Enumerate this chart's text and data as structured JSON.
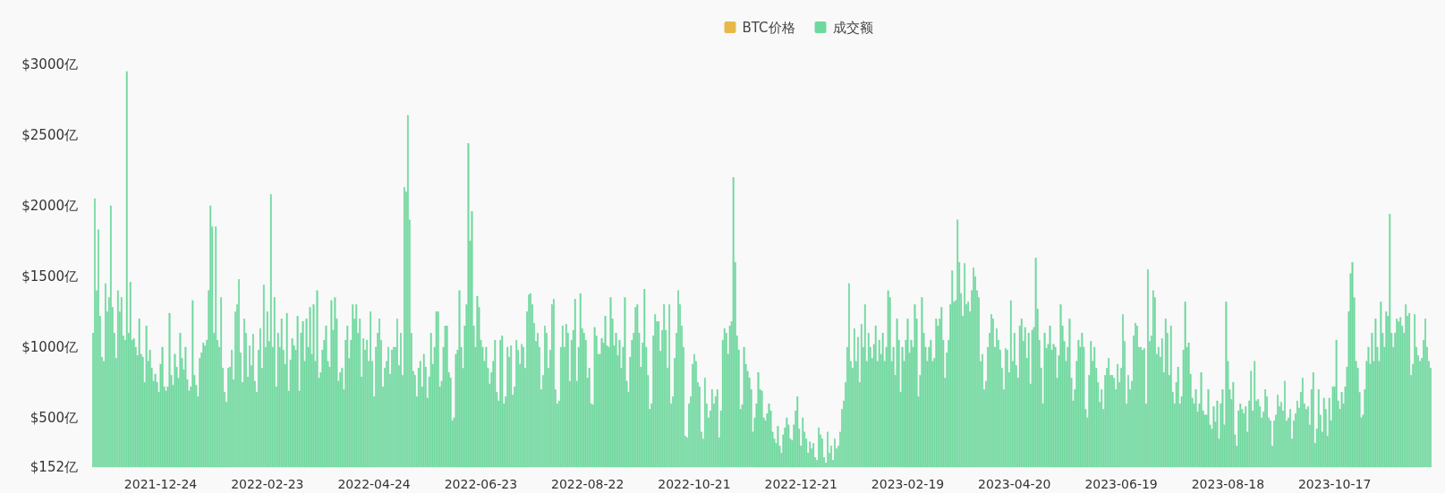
{
  "chart_data": {
    "type": "bar",
    "legend": "top",
    "ylim": [
      152,
      3000
    ],
    "yticks": [
      {
        "value": 152,
        "label": "$152亿"
      },
      {
        "value": 500,
        "label": "$500亿"
      },
      {
        "value": 1000,
        "label": "$1000亿"
      },
      {
        "value": 1500,
        "label": "$1500亿"
      },
      {
        "value": 2000,
        "label": "$2000亿"
      },
      {
        "value": 2500,
        "label": "$2500亿"
      },
      {
        "value": 3000,
        "label": "$3000亿"
      }
    ],
    "categories": [
      null,
      null,
      null,
      null,
      null,
      null,
      null,
      null,
      null,
      null,
      null,
      null,
      null,
      null,
      null,
      null,
      null,
      null,
      null,
      null,
      null,
      null,
      null,
      null,
      null,
      null,
      null,
      null,
      null,
      null,
      null,
      null,
      null,
      null,
      null,
      null,
      null,
      null,
      "2021-12-24",
      null,
      null,
      null,
      null,
      null,
      null,
      null,
      null,
      null,
      null,
      null,
      null,
      null,
      null,
      null,
      null,
      null,
      null,
      null,
      null,
      null,
      null,
      null,
      null,
      null,
      null,
      null,
      null,
      null,
      null,
      null,
      null,
      null,
      null,
      null,
      null,
      null,
      null,
      null,
      null,
      null,
      null,
      null,
      null,
      null,
      null,
      null,
      null,
      null,
      null,
      null,
      null,
      null,
      null,
      null,
      null,
      null,
      null,
      null,
      "2022-02-23",
      null,
      null,
      null,
      null,
      null,
      null,
      null,
      null,
      null,
      null,
      null,
      null,
      null,
      null,
      null,
      null,
      null,
      null,
      null,
      null,
      null,
      null,
      null,
      null,
      null,
      null,
      null,
      null,
      null,
      null,
      null,
      null,
      null,
      null,
      null,
      null,
      null,
      null,
      null,
      null,
      null,
      null,
      null,
      null,
      null,
      null,
      null,
      null,
      null,
      null,
      null,
      null,
      null,
      null,
      null,
      null,
      null,
      null,
      null,
      "2022-04-24",
      null,
      null,
      null,
      null,
      null,
      null,
      null,
      null,
      null,
      null,
      null,
      null,
      null,
      null,
      null,
      null,
      null,
      null,
      null,
      null,
      null,
      null,
      null,
      null,
      null,
      null,
      null,
      null,
      null,
      null,
      null,
      null,
      null,
      null,
      null,
      null,
      null,
      null,
      null,
      null,
      null,
      null,
      null,
      null,
      null,
      null,
      null,
      null,
      null,
      null,
      null,
      null,
      null,
      null,
      null,
      null,
      null,
      null,
      null,
      "2022-06-23",
      null,
      null,
      null,
      null,
      null,
      null,
      null,
      null,
      null,
      null,
      null,
      null,
      null,
      null,
      null,
      null,
      null,
      null,
      null,
      null,
      null,
      null,
      null,
      null,
      null,
      null,
      null,
      null,
      null,
      null,
      null,
      null,
      null,
      null,
      null,
      null,
      null,
      null,
      null,
      null,
      null,
      null,
      null,
      null,
      null,
      null,
      null,
      null,
      null,
      null,
      null,
      null,
      null,
      null,
      null,
      null,
      null,
      null,
      null,
      "2022-08-22",
      null,
      null,
      null,
      null,
      null,
      null,
      null,
      null,
      null,
      null,
      null,
      null,
      null,
      null,
      null,
      null,
      null,
      null,
      null,
      null,
      null,
      null,
      null,
      null,
      null,
      null,
      null,
      null,
      null,
      null,
      null,
      null,
      null,
      null,
      null,
      null,
      null,
      null,
      null,
      null,
      null,
      null,
      null,
      null,
      null,
      null,
      null,
      null,
      null,
      null,
      null,
      null,
      null,
      null,
      null,
      null,
      null,
      null,
      null,
      "2022-10-21",
      null,
      null,
      null,
      null,
      null,
      null,
      null,
      null,
      null,
      null,
      null,
      null,
      null,
      null,
      null,
      null,
      null,
      null,
      null,
      null,
      null,
      null,
      null,
      null,
      null,
      null,
      null,
      null,
      null,
      null,
      null,
      null,
      null,
      null,
      null,
      null,
      null,
      null,
      null,
      null,
      null,
      null,
      null,
      null,
      null,
      null,
      null,
      null,
      null,
      null,
      null,
      null,
      null,
      null,
      null,
      null,
      null,
      null,
      null,
      "2022-12-21",
      null,
      null,
      null,
      null,
      null,
      null,
      null,
      null,
      null,
      null,
      null,
      null,
      null,
      null,
      null,
      null,
      null,
      null,
      null,
      null,
      null,
      null,
      null,
      null,
      null,
      null,
      null,
      null,
      null,
      null,
      null,
      null,
      null,
      null,
      null,
      null,
      null,
      null,
      null,
      null,
      null,
      null,
      null,
      null,
      null,
      null,
      null,
      null,
      null,
      null,
      null,
      null,
      null,
      null,
      null,
      null,
      null,
      null,
      null,
      "2023-02-19",
      null,
      null,
      null,
      null,
      null,
      null,
      null,
      null,
      null,
      null,
      null,
      null,
      null,
      null,
      null,
      null,
      null,
      null,
      null,
      null,
      null,
      null,
      null,
      null,
      null,
      null,
      null,
      null,
      null,
      null,
      null,
      null,
      null,
      null,
      null,
      null,
      null,
      null,
      null,
      null,
      null,
      null,
      null,
      null,
      null,
      null,
      null,
      null,
      null,
      null,
      null,
      null,
      null,
      null,
      null,
      null,
      null,
      null,
      null,
      "2023-04-20",
      null,
      null,
      null,
      null,
      null,
      null,
      null,
      null,
      null,
      null,
      null,
      null,
      null,
      null,
      null,
      null,
      null,
      null,
      null,
      null,
      null,
      null,
      null,
      null,
      null,
      null,
      null,
      null,
      null,
      null,
      null,
      null,
      null,
      null,
      null,
      null,
      null,
      null,
      null,
      null,
      null,
      null,
      null,
      null,
      null,
      null,
      null,
      null,
      null,
      null,
      null,
      null,
      null,
      null,
      null,
      null,
      null,
      null,
      null,
      "2023-06-19",
      null,
      null,
      null,
      null,
      null,
      null,
      null,
      null,
      null,
      null,
      null,
      null,
      null,
      null,
      null,
      null,
      null,
      null,
      null,
      null,
      null,
      null,
      null,
      null,
      null,
      null,
      null,
      null,
      null,
      null,
      null,
      null,
      null,
      null,
      null,
      null,
      null,
      null,
      null,
      null,
      null,
      null,
      null,
      null,
      null,
      null,
      null,
      null,
      null,
      null,
      null,
      null,
      null,
      null,
      null,
      null,
      null,
      null,
      null,
      "2023-08-18",
      null,
      null,
      null,
      null,
      null,
      null,
      null,
      null,
      null,
      null,
      null,
      null,
      null,
      null,
      null,
      null,
      null,
      null,
      null,
      null,
      null,
      null,
      null,
      null,
      null,
      null,
      null,
      null,
      null,
      null,
      null,
      null,
      null,
      null,
      null,
      null,
      null,
      null,
      null,
      null,
      null,
      null,
      null,
      null,
      null,
      null,
      null,
      null,
      null,
      null,
      null,
      null,
      null,
      null,
      null,
      null,
      null,
      null,
      null,
      "2023-10-17",
      null,
      null,
      null,
      null,
      null,
      null,
      null,
      null,
      null,
      null,
      null,
      null,
      null,
      null,
      null,
      null,
      null,
      null,
      null,
      null,
      null,
      null,
      null,
      null,
      null,
      null,
      null,
      null,
      null,
      null,
      null,
      null,
      null,
      null,
      null,
      null,
      null,
      null,
      null,
      null,
      null,
      null,
      null,
      null,
      null,
      null,
      null,
      null,
      null,
      null,
      null,
      null,
      null,
      null
    ],
    "series": [
      {
        "name": "BTC价格",
        "color": "#e8b949",
        "values": [
          null,
          null,
          null,
          null,
          null,
          null,
          null,
          null,
          null,
          null,
          null,
          null,
          null,
          null,
          null,
          null,
          null,
          null,
          null,
          null,
          null,
          null,
          null,
          null,
          null,
          null,
          null,
          null,
          null,
          null,
          null,
          null,
          null,
          null,
          null,
          null,
          null,
          null,
          null,
          null,
          null,
          null,
          null,
          null,
          null,
          null,
          null,
          null,
          null,
          null,
          null,
          null,
          null,
          null,
          null,
          null,
          null,
          null,
          null,
          null,
          null,
          null,
          null,
          null,
          null,
          null,
          null,
          null,
          null,
          null,
          null,
          null,
          null,
          null,
          null,
          null,
          null,
          null,
          null,
          null,
          null,
          null,
          null,
          null,
          null,
          null,
          null,
          null,
          null,
          null,
          null,
          null,
          null,
          null,
          null,
          null,
          null,
          null,
          null,
          null,
          null,
          null,
          null,
          null,
          null,
          null,
          null,
          null,
          null,
          null,
          null,
          null,
          null,
          null,
          null,
          null,
          null,
          null,
          null,
          null,
          null,
          null,
          null,
          null,
          null,
          null,
          null,
          null,
          null,
          null,
          null,
          null,
          null,
          null,
          null,
          null,
          null,
          null,
          null,
          null,
          null,
          null,
          null,
          null,
          null,
          null,
          null,
          null,
          null,
          null,
          null,
          null,
          null,
          null,
          null,
          null,
          null,
          null,
          null,
          null,
          null,
          null,
          null,
          null,
          null,
          null,
          null,
          null,
          null,
          null,
          null,
          null,
          null,
          null,
          null,
          null,
          null,
          null,
          null,
          null,
          null,
          null,
          null,
          null,
          null,
          null,
          null,
          null,
          null,
          null,
          null,
          null,
          null,
          null,
          null,
          null,
          null,
          null,
          null,
          null,
          null,
          null,
          null,
          null,
          null,
          null,
          null,
          null,
          null,
          null,
          null,
          null,
          null,
          null,
          null,
          null,
          null,
          null,
          null,
          null,
          null,
          null,
          null,
          null,
          null,
          null,
          null,
          null,
          null,
          null,
          null,
          null,
          null,
          null,
          null,
          null,
          null,
          null,
          null,
          null,
          null,
          null,
          null,
          null,
          null,
          null,
          null,
          null,
          null,
          null,
          null,
          null,
          null,
          null,
          null,
          null,
          null,
          null,
          null,
          null,
          null,
          null,
          null,
          null,
          null,
          null,
          null,
          null,
          null,
          null,
          null,
          null,
          null,
          null,
          null,
          null,
          null,
          null,
          null,
          null,
          null,
          null,
          null,
          null,
          null,
          null,
          null,
          null,
          null,
          null,
          null,
          null,
          null,
          null,
          null,
          null,
          null,
          null,
          null,
          null,
          null,
          null,
          null,
          null,
          null,
          null,
          null,
          null,
          null,
          null,
          null,
          null,
          null,
          null,
          null,
          null,
          null,
          null,
          null,
          null,
          null,
          null,
          null,
          null,
          null,
          null,
          null,
          null,
          null,
          null,
          null,
          null,
          null,
          null,
          null,
          null,
          null,
          null,
          null,
          null,
          null,
          null,
          null,
          null,
          null,
          null,
          null,
          null,
          null,
          null,
          null,
          null,
          null,
          null,
          null,
          null,
          null,
          null,
          null,
          null,
          null,
          null,
          null,
          null,
          null,
          null,
          null,
          null,
          null,
          null,
          null,
          null,
          null,
          null,
          null,
          null,
          null,
          null,
          null,
          null,
          null,
          null,
          null,
          null,
          null,
          null,
          null,
          null,
          null,
          null,
          null,
          null,
          null,
          null,
          null,
          null,
          null,
          null,
          null,
          null,
          null,
          null,
          null,
          null,
          null,
          null,
          null,
          null,
          null,
          null,
          null,
          null,
          null,
          null,
          null,
          null,
          null,
          null,
          null,
          null,
          null,
          null,
          null,
          null,
          null,
          null,
          null,
          null,
          null,
          null,
          null,
          null,
          null,
          null,
          null,
          null,
          null,
          null,
          null,
          null,
          null,
          null,
          null,
          null,
          null,
          null,
          null,
          null,
          null,
          null,
          null,
          null,
          null,
          null,
          null,
          null,
          null,
          null,
          null,
          null,
          null,
          null,
          null,
          null,
          null,
          null,
          null,
          null,
          null,
          null,
          null,
          null,
          null,
          null,
          null,
          null,
          null,
          null,
          null,
          null,
          null,
          null,
          null,
          null,
          null,
          null,
          null,
          null,
          null,
          null,
          null,
          null,
          null,
          null,
          null,
          null,
          null,
          null,
          null,
          null,
          null,
          null,
          null,
          null,
          null,
          null,
          null,
          null,
          null,
          null,
          null,
          null,
          null,
          null,
          null,
          null,
          null,
          null,
          null,
          null,
          null,
          null,
          null,
          null,
          null,
          null,
          null,
          null,
          null,
          null,
          null,
          null,
          null,
          null,
          null,
          null,
          null,
          null,
          null,
          null,
          null,
          null,
          null,
          null,
          null,
          null,
          null,
          null,
          null,
          null,
          null,
          null,
          null,
          null,
          null,
          null,
          null,
          null,
          null,
          null,
          null,
          null,
          null,
          null,
          null,
          null,
          null,
          null,
          null,
          null,
          null,
          null,
          null,
          null,
          null,
          null,
          null,
          null,
          null,
          null,
          null,
          null,
          null,
          null,
          null,
          null,
          null,
          null,
          null,
          null,
          null,
          null,
          null,
          null,
          null,
          null,
          null,
          null,
          null,
          null,
          null,
          null,
          null,
          null,
          null,
          null,
          null,
          null,
          null,
          null,
          null,
          null,
          null,
          null,
          null,
          null,
          null,
          null,
          null,
          null,
          null,
          null,
          null,
          null,
          null,
          null,
          null,
          null,
          null,
          null,
          null,
          null,
          null,
          null,
          null,
          null,
          null,
          null,
          null,
          null,
          null,
          null,
          null,
          null,
          null,
          null,
          null,
          null,
          null,
          null,
          null,
          null,
          null,
          null,
          null,
          null,
          null,
          null,
          null,
          null,
          null,
          null,
          null,
          null,
          null,
          null,
          null,
          null,
          null,
          null,
          null,
          null,
          null,
          null,
          null,
          null,
          null,
          null,
          null,
          null,
          null,
          null,
          null,
          null,
          null,
          null,
          null,
          null,
          null,
          null,
          null,
          null,
          null,
          null,
          null,
          null,
          null,
          null,
          null,
          null,
          null,
          null,
          null,
          null,
          null,
          null,
          null,
          null,
          null,
          null,
          null,
          null,
          null,
          null,
          null,
          null,
          null,
          null,
          null,
          null,
          null,
          null,
          null,
          null,
          null,
          null,
          null,
          null,
          null,
          null,
          null,
          null,
          null,
          null,
          null,
          null,
          null,
          null,
          null,
          null,
          null,
          null,
          null,
          null,
          null,
          null,
          null,
          null,
          null,
          null,
          null,
          null,
          null
        ]
      },
      {
        "name": "成交额",
        "color": "#6fd89e",
        "values": [
          1100,
          2050,
          1400,
          1830,
          1220,
          930,
          900,
          1450,
          1250,
          1350,
          2000,
          1280,
          1100,
          920,
          1400,
          1250,
          1350,
          1080,
          1050,
          2950,
          1100,
          1460,
          1050,
          1060,
          1000,
          940,
          1200,
          950,
          930,
          750,
          1150,
          900,
          980,
          850,
          760,
          810,
          750,
          680,
          880,
          1000,
          720,
          690,
          720,
          1240,
          800,
          730,
          950,
          860,
          780,
          1100,
          920,
          840,
          1000,
          770,
          690,
          720,
          1330,
          800,
          730,
          650,
          920,
          960,
          1030,
          1010,
          1050,
          1400,
          2000,
          1850,
          1100,
          1850,
          1050,
          1000,
          1350,
          850,
          680,
          610,
          850,
          860,
          980,
          770,
          1250,
          1300,
          1480,
          960,
          750,
          1200,
          1100,
          790,
          1010,
          870,
          1090,
          760,
          680,
          980,
          1130,
          850,
          1440,
          1000,
          1250,
          1040,
          2080,
          1000,
          1350,
          720,
          1100,
          1000,
          1200,
          980,
          880,
          1240,
          690,
          910,
          1060,
          1010,
          980,
          1220,
          690,
          1100,
          1180,
          900,
          1200,
          1000,
          1280,
          950,
          1300,
          900,
          1400,
          780,
          820,
          980,
          1050,
          1150,
          900,
          860,
          1330,
          1120,
          1350,
          1200,
          760,
          820,
          850,
          700,
          1050,
          1150,
          920,
          1050,
          1300,
          1200,
          1300,
          1100,
          1200,
          790,
          1060,
          980,
          1050,
          900,
          1250,
          900,
          650,
          1000,
          1100,
          1200,
          1050,
          720,
          850,
          900,
          1000,
          810,
          980,
          1000,
          1000,
          1200,
          870,
          1100,
          800,
          2130,
          2100,
          2640,
          1900,
          1100,
          830,
          800,
          650,
          850,
          900,
          720,
          950,
          860,
          640,
          790,
          1100,
          880,
          1000,
          1250,
          1250,
          720,
          760,
          1000,
          1150,
          1150,
          820,
          780,
          480,
          500,
          950,
          980,
          1400,
          1000,
          850,
          1150,
          1300,
          2440,
          1750,
          1960,
          1150,
          1000,
          1360,
          1280,
          1050,
          1000,
          900,
          1000,
          850,
          740,
          820,
          900,
          1050,
          680,
          620,
          1050,
          1080,
          600,
          650,
          1000,
          930,
          1010,
          660,
          720,
          1050,
          980,
          880,
          1020,
          1000,
          850,
          1250,
          1370,
          1380,
          1300,
          1170,
          1040,
          1100,
          1000,
          700,
          800,
          1150,
          1100,
          850,
          980,
          1300,
          1340,
          700,
          600,
          620,
          1000,
          1150,
          1000,
          1160,
          1100,
          760,
          1050,
          1120,
          1340,
          760,
          1000,
          1380,
          1130,
          1100,
          1050,
          780,
          850,
          600,
          590,
          1140,
          1080,
          950,
          950,
          1060,
          1030,
          1220,
          1010,
          1000,
          1350,
          1200,
          1010,
          1100,
          940,
          1050,
          850,
          1000,
          1350,
          760,
          680,
          930,
          1050,
          1100,
          1280,
          1300,
          1100,
          860,
          1030,
          1410,
          1000,
          800,
          560,
          600,
          1080,
          1230,
          1180,
          1180,
          970,
          1120,
          1300,
          1120,
          850,
          1300,
          600,
          650,
          920,
          1100,
          1400,
          1300,
          1150,
          1000,
          370,
          360,
          600,
          650,
          880,
          950,
          900,
          750,
          720,
          400,
          350,
          780,
          600,
          500,
          550,
          700,
          600,
          650,
          700,
          360,
          550,
          1050,
          1130,
          1100,
          950,
          1150,
          1180,
          2200,
          1600,
          1080,
          980,
          560,
          590,
          1000,
          880,
          830,
          780,
          700,
          400,
          500,
          600,
          820,
          700,
          690,
          500,
          480,
          530,
          600,
          550,
          400,
          350,
          320,
          440,
          300,
          250,
          380,
          430,
          500,
          450,
          350,
          340,
          450,
          550,
          650,
          420,
          300,
          500,
          400,
          350,
          250,
          330,
          280,
          320,
          220,
          200,
          430,
          380,
          350,
          220,
          180,
          400,
          250,
          300,
          200,
          350,
          280,
          300,
          400,
          560,
          620,
          750,
          1000,
          1450,
          900,
          850,
          1130,
          900,
          1070,
          750,
          1160,
          1000,
          1300,
          900,
          1100,
          1000,
          920,
          1020,
          1150,
          900,
          1050,
          950,
          1100,
          900,
          1000,
          1400,
          1350,
          900,
          1000,
          800,
          1200,
          1050,
          680,
          1000,
          900,
          1050,
          1200,
          960,
          1050,
          1000,
          1300,
          1200,
          650,
          800,
          1350,
          1100,
          1000,
          900,
          1000,
          1050,
          900,
          920,
          1200,
          1150,
          1200,
          1280,
          1050,
          780,
          960,
          1050,
          1300,
          1540,
          1320,
          1330,
          1900,
          1600,
          1380,
          1220,
          1590,
          1300,
          1320,
          1250,
          1400,
          1560,
          1500,
          1400,
          1350,
          900,
          950,
          700,
          760,
          1000,
          1100,
          1230,
          1200,
          1000,
          1130,
          1050,
          980,
          850,
          700,
          990,
          980,
          820,
          1330,
          900,
          1100,
          870,
          780,
          1150,
          1200,
          1040,
          1140,
          920,
          1100,
          740,
          1120,
          1140,
          1630,
          1270,
          1050,
          850,
          600,
          1100,
          990,
          1020,
          1150,
          980,
          1020,
          1000,
          780,
          940,
          1300,
          1150,
          1040,
          900,
          1000,
          1200,
          780,
          620,
          700,
          900,
          1050,
          1000,
          1100,
          1000,
          560,
          500,
          800,
          1040,
          900,
          1000,
          850,
          750,
          610,
          700,
          560,
          800,
          850,
          920,
          800,
          800,
          780,
          700,
          880,
          750,
          850,
          1230,
          1040,
          600,
          800,
          700,
          760,
          1080,
          1170,
          1150,
          1000,
          1000,
          980,
          990,
          600,
          1550,
          1040,
          1080,
          1400,
          1350,
          950,
          1000,
          930,
          1060,
          820,
          1200,
          1100,
          800,
          1150,
          680,
          600,
          750,
          860,
          600,
          650,
          980,
          1320,
          1000,
          1030,
          810,
          640,
          600,
          700,
          540,
          600,
          820,
          550,
          520,
          520,
          700,
          450,
          420,
          580,
          470,
          620,
          350,
          600,
          700,
          450,
          1320,
          900,
          700,
          630,
          750,
          380,
          300,
          550,
          600,
          560,
          530,
          580,
          400,
          620,
          830,
          550,
          900,
          620,
          630,
          580,
          500,
          540,
          700,
          650,
          500,
          480,
          300,
          480,
          520,
          660,
          580,
          610,
          550,
          760,
          480,
          500,
          560,
          350,
          480,
          530,
          620,
          570,
          680,
          780,
          600,
          560,
          580,
          450,
          700,
          820,
          320,
          420,
          700,
          520,
          400,
          640,
          560,
          370,
          640,
          480,
          720,
          720,
          1050,
          620,
          560,
          680,
          600,
          720,
          860,
          1250,
          1520,
          1600,
          1350,
          900,
          850,
          680,
          500,
          520,
          700,
          900,
          1000,
          880,
          1100,
          900,
          1200,
          1000,
          900,
          1320,
          1100,
          1000,
          1250,
          1220,
          1940,
          1100,
          1000,
          1100,
          1200,
          1180,
          1210,
          1150,
          1100,
          1300,
          1220,
          1240,
          800,
          880,
          1230,
          1000,
          940,
          900,
          920,
          1050,
          1200,
          1000,
          900,
          850
        ]
      }
    ]
  }
}
